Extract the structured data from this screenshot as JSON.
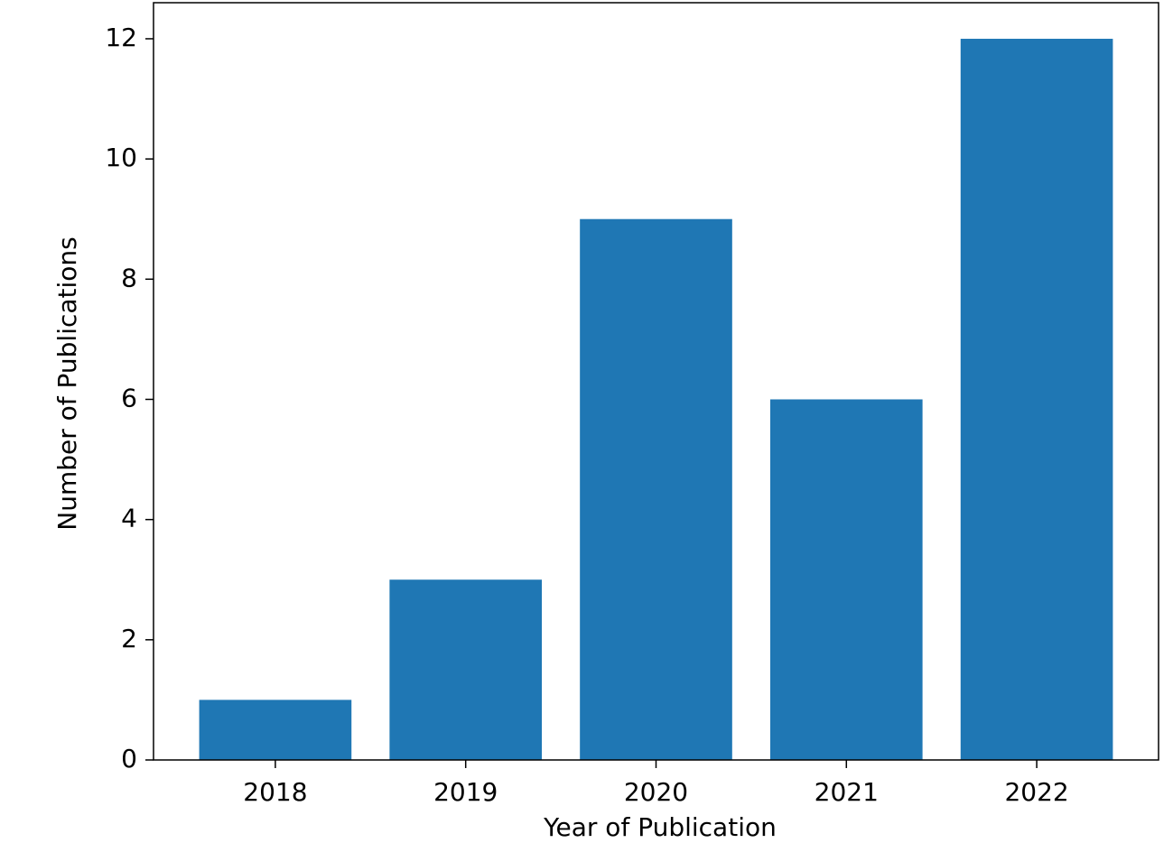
{
  "chart_data": {
    "type": "bar",
    "x_label": "Year of Publication",
    "y_label": "Number of Publications",
    "categories": [
      "2018",
      "2019",
      "2020",
      "2021",
      "2022"
    ],
    "values": [
      1,
      3,
      9,
      6,
      12
    ],
    "color": "#1f77b4",
    "ylim": [
      0,
      12.6
    ],
    "yticks": [
      0,
      2,
      4,
      6,
      8,
      10,
      12
    ],
    "grid": false
  }
}
